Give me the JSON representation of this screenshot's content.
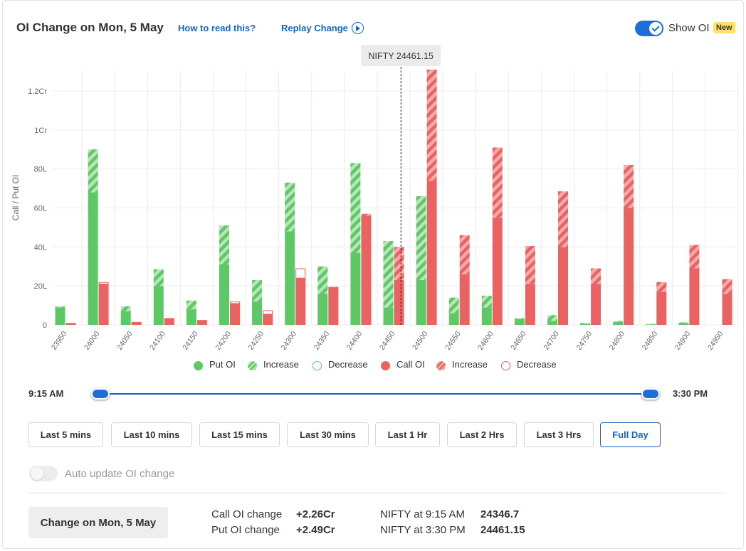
{
  "header": {
    "title": "OI Change on Mon, 5 May",
    "how_to_read": "How to read this?",
    "replay": "Replay Change",
    "show_oi": "Show OI",
    "new_badge": "New"
  },
  "chart_data": {
    "type": "bar",
    "ylabel": "Call / Put OI",
    "yticks": [
      "0",
      "20L",
      "40L",
      "60L",
      "80L",
      "1Cr",
      "1.2Cr"
    ],
    "ylim": [
      0,
      130
    ],
    "units": "Lakh",
    "grid": true,
    "spot_label": "NIFTY 24461.15",
    "spot_value": 24461.15,
    "categories": [
      "23950",
      "24000",
      "24050",
      "24100",
      "24150",
      "24200",
      "24250",
      "24300",
      "24350",
      "24400",
      "24450",
      "24500",
      "24550",
      "24600",
      "24650",
      "24700",
      "24750",
      "24800",
      "24850",
      "24900",
      "24950"
    ],
    "put_oi": [
      9,
      68,
      7,
      20,
      8,
      31,
      12,
      48,
      16,
      37,
      9,
      23,
      6,
      9,
      3,
      2,
      0.5,
      1.5,
      0.3,
      1,
      0
    ],
    "put_increase": [
      0.5,
      22,
      2.5,
      8.5,
      4.5,
      20,
      11,
      25,
      14,
      46,
      34,
      43,
      8,
      6,
      0.5,
      3,
      0.5,
      0.5,
      0.2,
      0.3,
      0
    ],
    "put_decrease": [
      0,
      0,
      0,
      0,
      0,
      0,
      0,
      0,
      0,
      0,
      0,
      0,
      0,
      0,
      0,
      0,
      0,
      0,
      0,
      0,
      0
    ],
    "call_oi": [
      1,
      21,
      1.5,
      3.5,
      2.5,
      11,
      5.5,
      24,
      19,
      56,
      23,
      74,
      26,
      55,
      21,
      40,
      21,
      60,
      17,
      29,
      16
    ],
    "call_increase": [
      0,
      0,
      0,
      0,
      0,
      0,
      0,
      0,
      0,
      1,
      17,
      57,
      20,
      36,
      19.5,
      28.5,
      8,
      22,
      5,
      12,
      7.5
    ],
    "call_decrease": [
      0,
      1,
      0,
      0,
      0,
      1,
      2,
      5,
      0.5,
      0,
      0,
      0,
      0,
      0,
      0,
      0,
      0,
      0,
      0,
      0,
      0
    ],
    "legend": [
      "Put OI",
      "Increase",
      "Decrease",
      "Call OI",
      "Increase",
      "Decrease"
    ],
    "colors": {
      "put": "#5dc865",
      "put_stripe": "#b8e6b8",
      "call": "#e96363",
      "call_stripe": "#f4abab",
      "grid": "#ececec",
      "axis_text": "#666666"
    }
  },
  "timeline": {
    "start_label": "9:15 AM",
    "end_label": "3:30 PM"
  },
  "range_buttons": [
    {
      "label": "Last 5 mins",
      "active": false
    },
    {
      "label": "Last 10 mins",
      "active": false
    },
    {
      "label": "Last 15 mins",
      "active": false
    },
    {
      "label": "Last 30 mins",
      "active": false
    },
    {
      "label": "Last 1 Hr",
      "active": false
    },
    {
      "label": "Last 2 Hrs",
      "active": false
    },
    {
      "label": "Last 3 Hrs",
      "active": false
    },
    {
      "label": "Full Day",
      "active": true
    }
  ],
  "auto_update": {
    "label": "Auto update OI change",
    "enabled": false
  },
  "summary": {
    "button_label": "Change on Mon, 5 May",
    "call_oi_change_label": "Call OI change",
    "call_oi_change_value": "+2.26Cr",
    "put_oi_change_label": "Put OI change",
    "put_oi_change_value": "+2.49Cr",
    "nifty_open_label": "NIFTY at 9:15 AM",
    "nifty_open_value": "24346.7",
    "nifty_close_label": "NIFTY at 3:30 PM",
    "nifty_close_value": "24461.15"
  }
}
